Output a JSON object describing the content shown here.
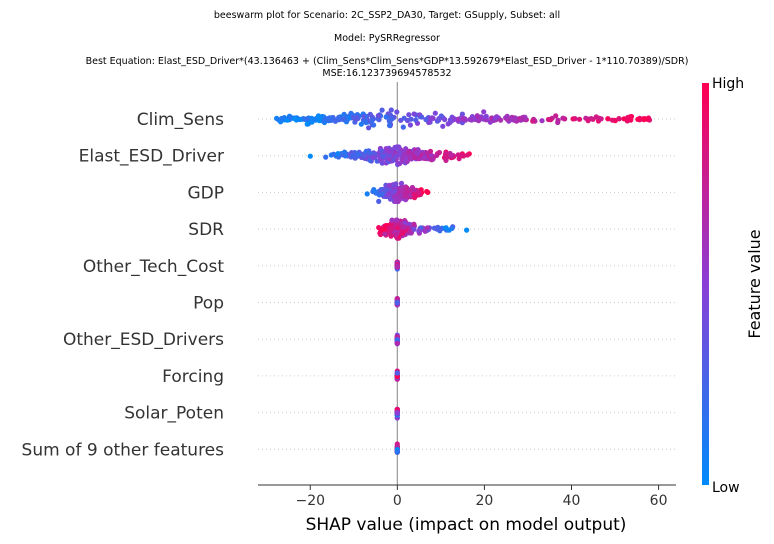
{
  "header": {
    "line1": "beeswarm plot for Scenario: 2C_SSP2_DA30, Target: GSupply, Subset: all",
    "line2": "Model: PySRRegressor",
    "line3": "Best Equation: Elast_ESD_Driver*(43.136463 + (Clim_Sens*Clim_Sens*GDP*13.592679*Elast_ESD_Driver - 1*110.70389)/SDR)",
    "line4": "MSE:16.123739694578532"
  },
  "chart_data": {
    "type": "scatter",
    "subtype": "shap_beeswarm",
    "xlabel": "SHAP value (impact on model output)",
    "xlim": [
      -32,
      64
    ],
    "xticks": [
      -20,
      0,
      20,
      40,
      60
    ],
    "xtick_labels": [
      "−20",
      "0",
      "20",
      "40",
      "60"
    ],
    "features": [
      {
        "name": "Clim_Sens",
        "min": -28,
        "max": 59,
        "spread": 2.2,
        "skew": "wide"
      },
      {
        "name": "Elast_ESD_Driver",
        "min": -20,
        "max": 20,
        "spread": 2.0,
        "skew": "center"
      },
      {
        "name": "GDP",
        "min": -8,
        "max": 7,
        "spread": 1.6,
        "skew": "center"
      },
      {
        "name": "SDR",
        "min": -5,
        "max": 16,
        "spread": 1.2,
        "skew": "right"
      },
      {
        "name": "Other_Tech_Cost",
        "min": 0,
        "max": 0,
        "spread": 0,
        "skew": "zero"
      },
      {
        "name": "Pop",
        "min": 0,
        "max": 0,
        "spread": 0,
        "skew": "zero"
      },
      {
        "name": "Other_ESD_Drivers",
        "min": 0,
        "max": 0,
        "spread": 0,
        "skew": "zero"
      },
      {
        "name": "Forcing",
        "min": 0,
        "max": 0,
        "spread": 0,
        "skew": "zero"
      },
      {
        "name": "Solar_Poten",
        "min": 0,
        "max": 0,
        "spread": 0,
        "skew": "zero"
      },
      {
        "name": "Sum of 9 other features",
        "min": 0,
        "max": 0,
        "spread": 0,
        "skew": "zero"
      }
    ],
    "colorbar": {
      "title": "Feature value",
      "high_label": "High",
      "low_label": "Low",
      "low_color": "#008bfb",
      "high_color": "#ff0052",
      "mid_color": "#8a3fd6"
    }
  }
}
